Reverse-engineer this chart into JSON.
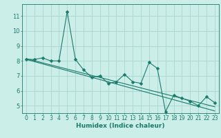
{
  "x": [
    0,
    1,
    2,
    3,
    4,
    5,
    6,
    7,
    8,
    9,
    10,
    11,
    12,
    13,
    14,
    15,
    16,
    17,
    18,
    19,
    20,
    21,
    22,
    23
  ],
  "y_main": [
    8.1,
    8.1,
    8.2,
    8.0,
    8.0,
    11.3,
    8.1,
    7.4,
    6.9,
    7.0,
    6.5,
    6.6,
    7.1,
    6.6,
    6.5,
    7.9,
    7.5,
    4.6,
    5.7,
    5.5,
    5.3,
    5.0,
    5.6,
    5.2
  ],
  "y_trend1": [
    8.1,
    7.95,
    7.8,
    7.65,
    7.5,
    7.35,
    7.2,
    7.05,
    6.9,
    6.75,
    6.6,
    6.45,
    6.3,
    6.15,
    6.0,
    5.85,
    5.7,
    5.55,
    5.4,
    5.25,
    5.1,
    4.95,
    4.8,
    4.65
  ],
  "y_trend2": [
    8.15,
    8.01,
    7.87,
    7.73,
    7.59,
    7.45,
    7.31,
    7.17,
    7.03,
    6.89,
    6.75,
    6.61,
    6.47,
    6.33,
    6.19,
    6.05,
    5.91,
    5.77,
    5.63,
    5.49,
    5.35,
    5.21,
    5.07,
    4.93
  ],
  "color_main": "#1a7a6a",
  "color_trend": "#1a7a6a",
  "background_color": "#cceee8",
  "grid_color": "#aad4ce",
  "axis_color": "#1a7a6a",
  "tick_color": "#1a7a6a",
  "xlabel": "Humidex (Indice chaleur)",
  "ylim": [
    4.5,
    11.8
  ],
  "xlim": [
    -0.5,
    23.5
  ],
  "yticks": [
    5,
    6,
    7,
    8,
    9,
    10,
    11
  ],
  "xticks": [
    0,
    1,
    2,
    3,
    4,
    5,
    6,
    7,
    8,
    9,
    10,
    11,
    12,
    13,
    14,
    15,
    16,
    17,
    18,
    19,
    20,
    21,
    22,
    23
  ],
  "xlabel_fontsize": 6.5,
  "tick_fontsize": 5.5,
  "linewidth": 0.8,
  "markersize": 2.5
}
